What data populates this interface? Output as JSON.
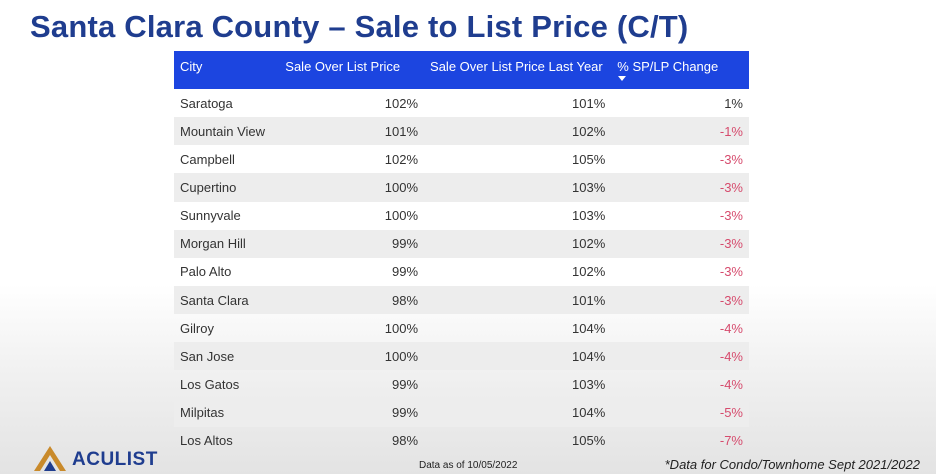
{
  "title": "Santa Clara County – Sale to List Price (C/T)",
  "colors": {
    "header_bg": "#1c45e0",
    "title": "#1f3d8f",
    "negative": "#d64b6d"
  },
  "chart_data": {
    "type": "table",
    "columns": [
      "City",
      "Sale Over List Price",
      "Sale Over List Price Last Year",
      "% SP/LP Change"
    ],
    "sorted_column": "% SP/LP Change",
    "rows": [
      [
        "Saratoga",
        "102%",
        "101%",
        "1%"
      ],
      [
        "Mountain View",
        "101%",
        "102%",
        "-1%"
      ],
      [
        "Campbell",
        "102%",
        "105%",
        "-3%"
      ],
      [
        "Cupertino",
        "100%",
        "103%",
        "-3%"
      ],
      [
        "Sunnyvale",
        "100%",
        "103%",
        "-3%"
      ],
      [
        "Morgan Hill",
        "99%",
        "102%",
        "-3%"
      ],
      [
        "Palo Alto",
        "99%",
        "102%",
        "-3%"
      ],
      [
        "Santa Clara",
        "98%",
        "101%",
        "-3%"
      ],
      [
        "Gilroy",
        "100%",
        "104%",
        "-4%"
      ],
      [
        "San Jose",
        "100%",
        "104%",
        "-4%"
      ],
      [
        "Los Gatos",
        "99%",
        "103%",
        "-4%"
      ],
      [
        "Milpitas",
        "99%",
        "104%",
        "-5%"
      ],
      [
        "Los Altos",
        "98%",
        "105%",
        "-7%"
      ]
    ]
  },
  "footer": {
    "logo_text": "ACULIST",
    "as_of": "Data as of 10/05/2022",
    "note": "*Data for Condo/Townhome Sept 2021/2022"
  }
}
